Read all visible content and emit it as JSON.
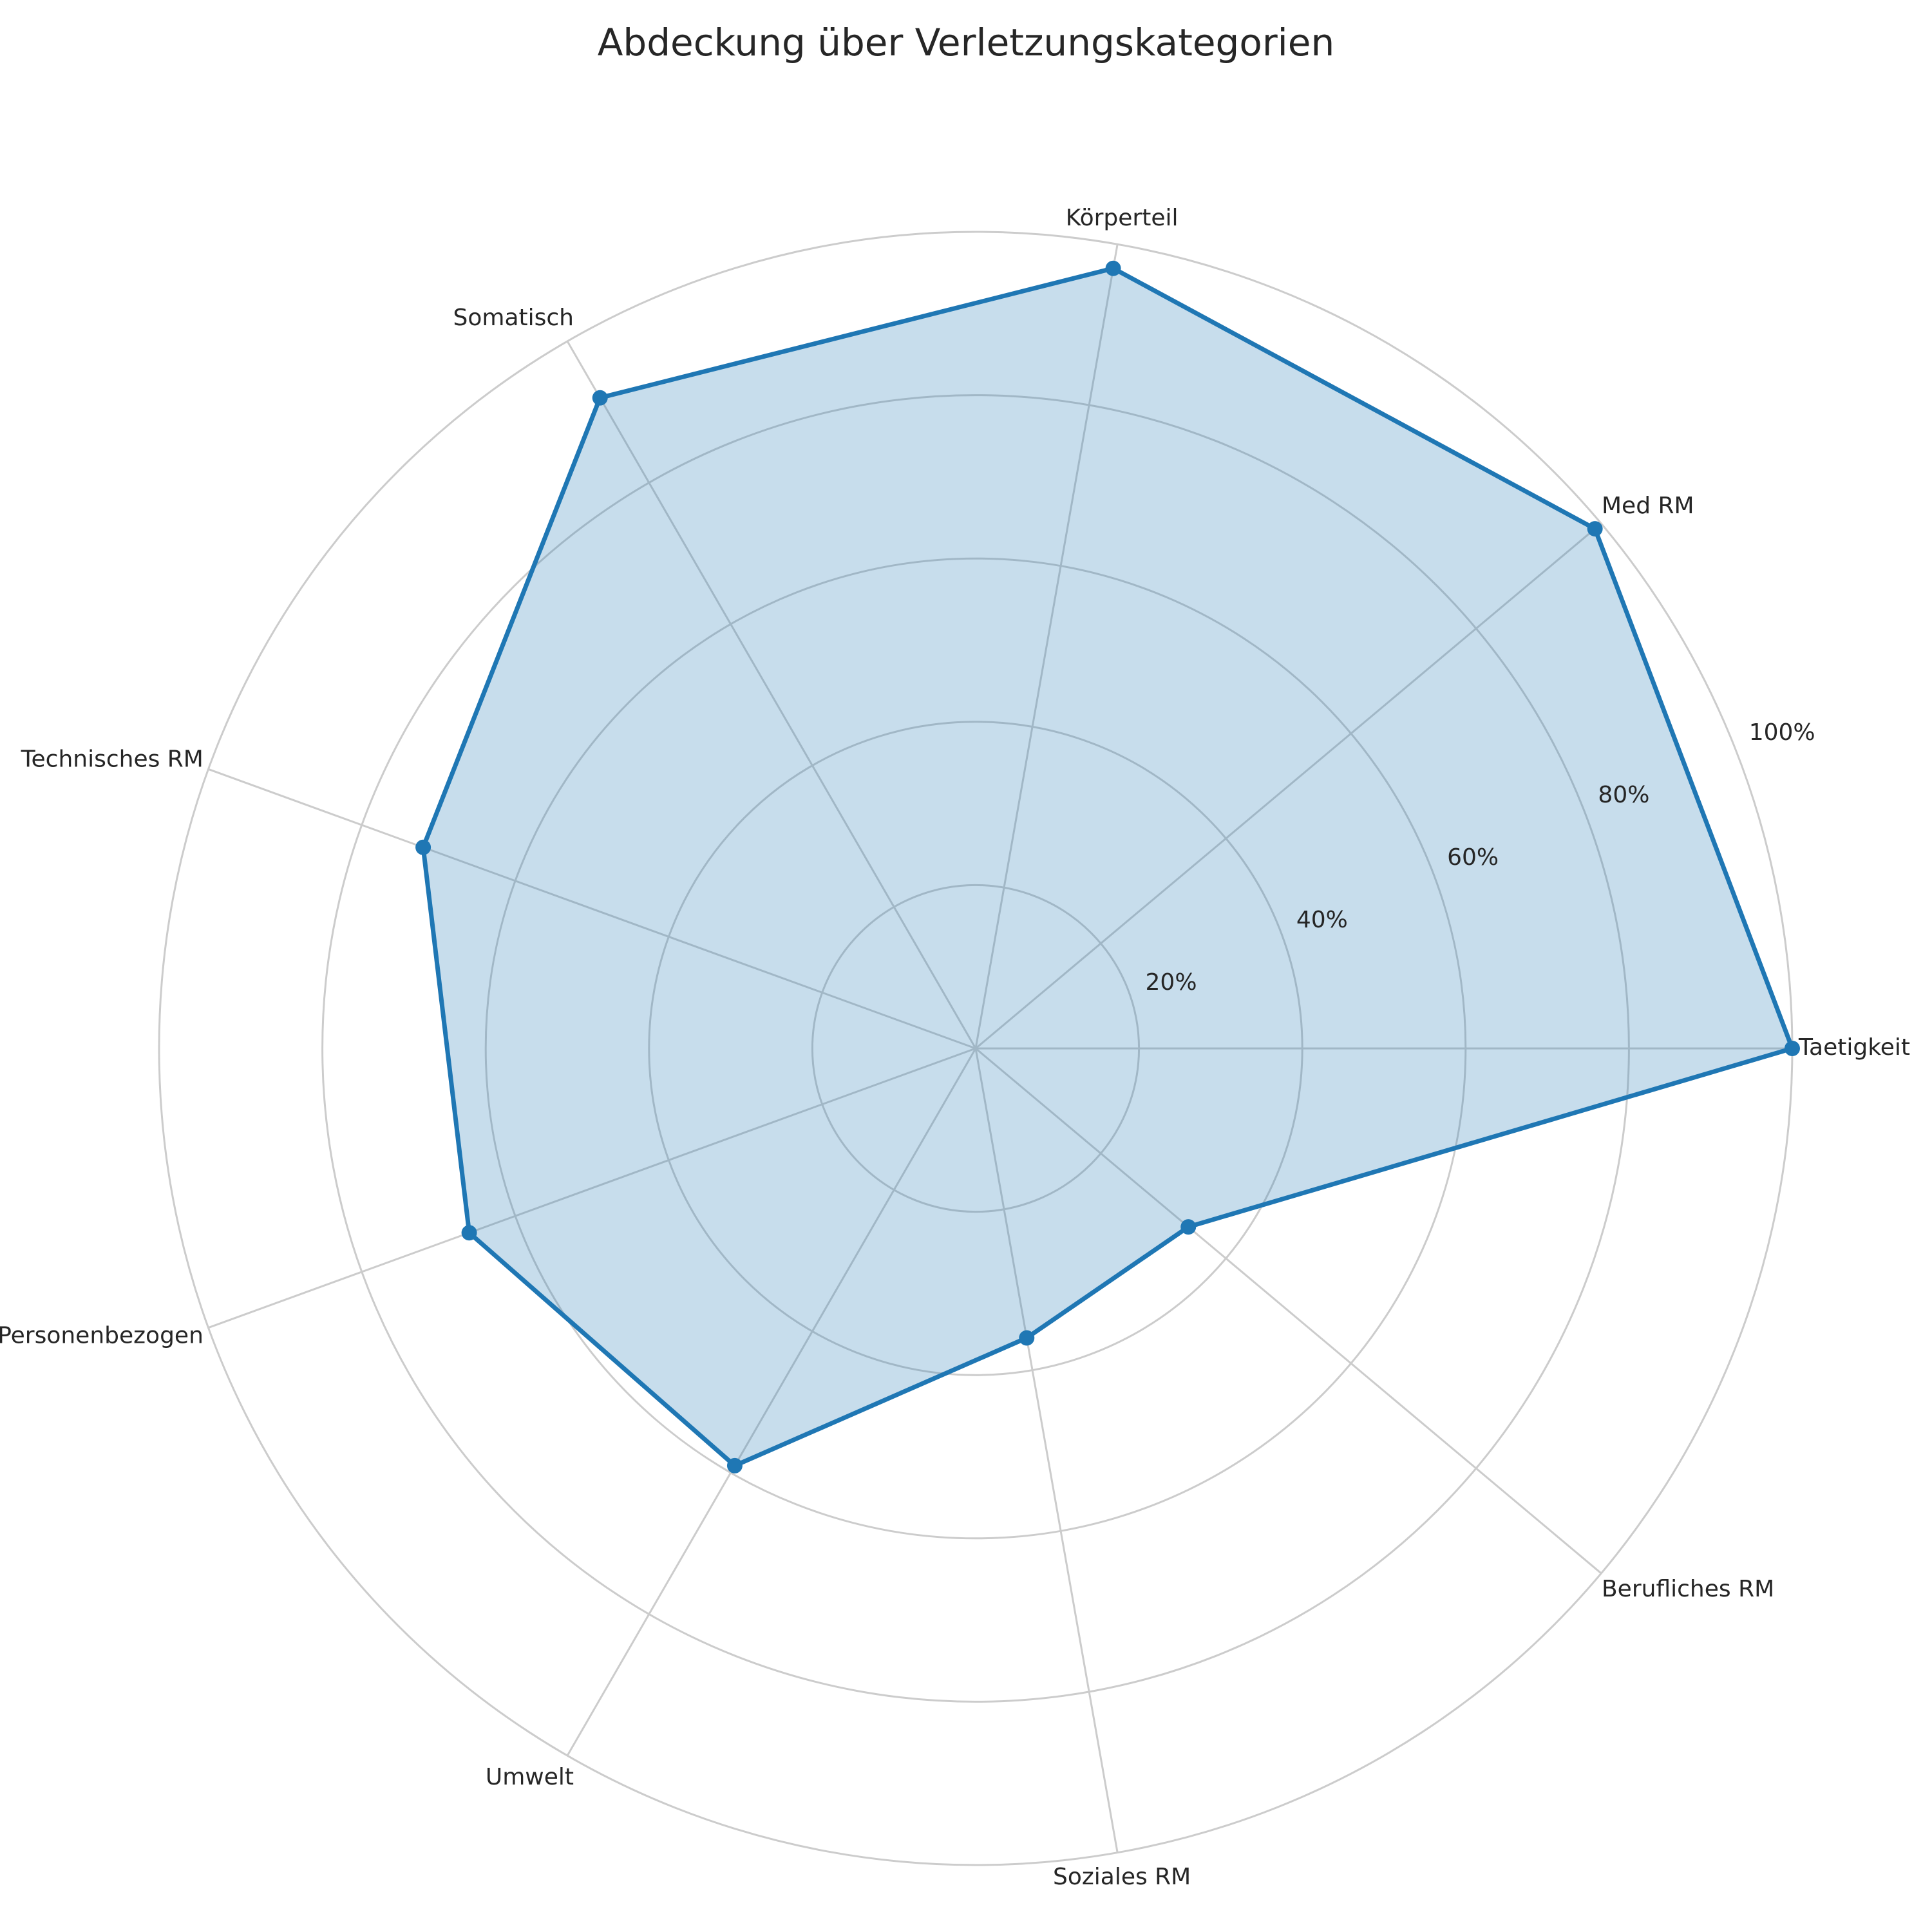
{
  "chart_data": {
    "type": "radar",
    "title": "Abdeckung über Verletzungskategorien",
    "categories": [
      "Taetigkeit",
      "Med RM",
      "Körperteil",
      "Somatisch",
      "Technisches RM",
      "Personenbezogen",
      "Umwelt",
      "Soziales RM",
      "Berufliches RM"
    ],
    "series": [
      {
        "values": [
          100,
          99,
          97,
          92,
          72,
          66,
          59,
          36,
          34
        ]
      }
    ],
    "r_ticks": [
      20,
      40,
      60,
      80,
      100
    ],
    "r_tick_labels": [
      "20%",
      "40%",
      "60%",
      "80%",
      "100%"
    ],
    "rlim": [
      0,
      100
    ],
    "grid": true,
    "colors": {
      "series": "#1f77b4",
      "grid": "#cccccc",
      "text": "#262626"
    }
  }
}
